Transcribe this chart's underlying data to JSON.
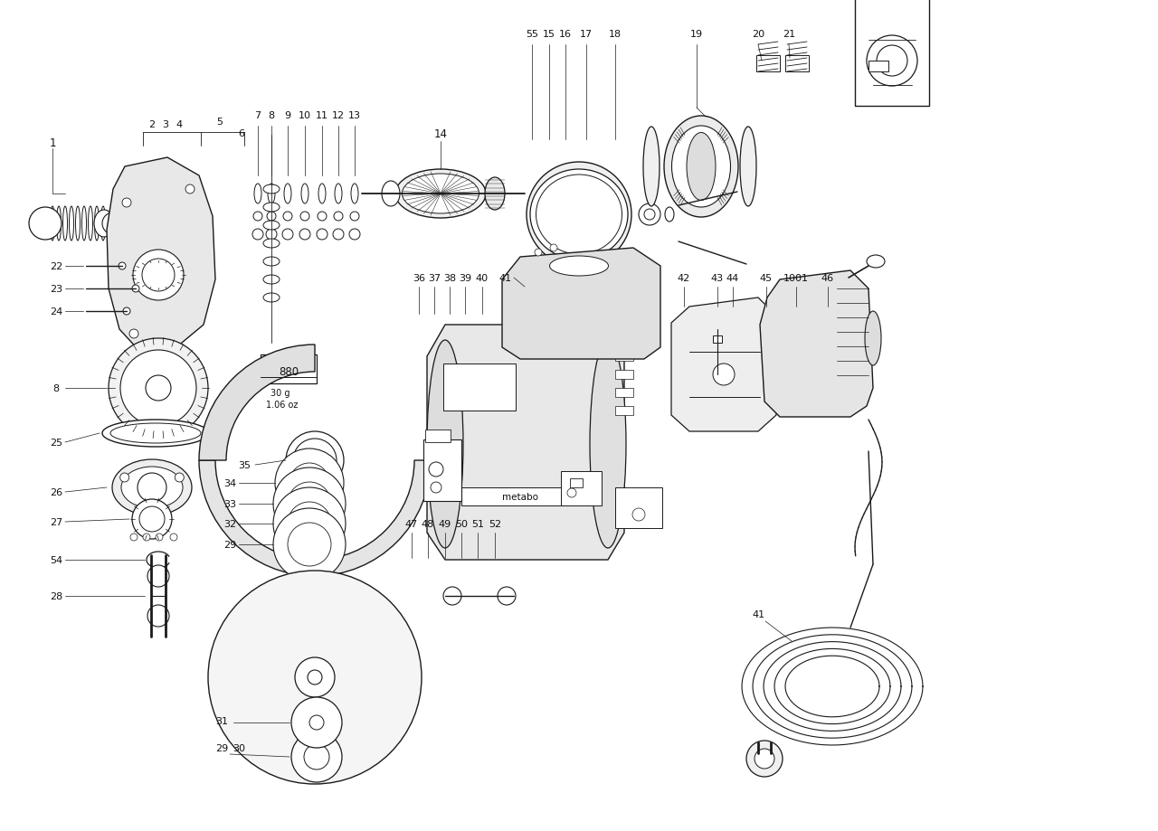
{
  "bg_color": "#ffffff",
  "line_color": "#1a1a1a",
  "figsize": [
    12.8,
    9.2
  ],
  "dpi": 100,
  "xlim": [
    0,
    1280
  ],
  "ylim": [
    0,
    920
  ]
}
